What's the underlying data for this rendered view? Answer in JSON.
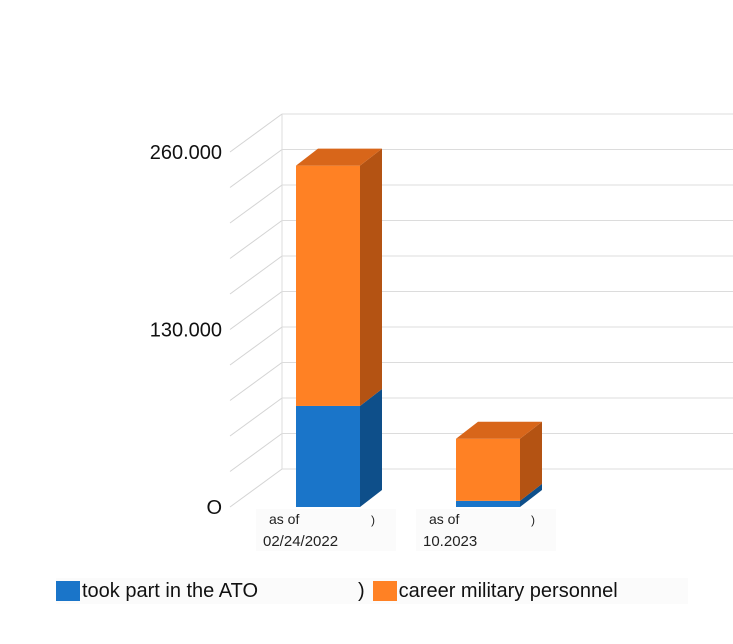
{
  "chart_data": {
    "type": "bar",
    "stacked": true,
    "three_d": true,
    "categories": [
      [
        "as of",
        "02/24/2022"
      ],
      [
        "as of",
        "10.2023"
      ]
    ],
    "series": [
      {
        "name": "took part in the ATO",
        "values": [
          74000,
          4500
        ],
        "color": "#1a75c9",
        "side_color": "#0e4f8a"
      },
      {
        "name": "career military personnel",
        "values": [
          176000,
          45500
        ],
        "color": "#ff8124",
        "side_color": "#b45313"
      }
    ],
    "y_ticks": [
      {
        "value": 0,
        "label": "O"
      },
      {
        "value": 130000,
        "label": "130.000"
      },
      {
        "value": 260000,
        "label": "260.000"
      }
    ],
    "ylim": [
      0,
      260000
    ],
    "grid": true,
    "legend_position": "bottom",
    "title": "",
    "xlabel": "",
    "ylabel": ""
  }
}
